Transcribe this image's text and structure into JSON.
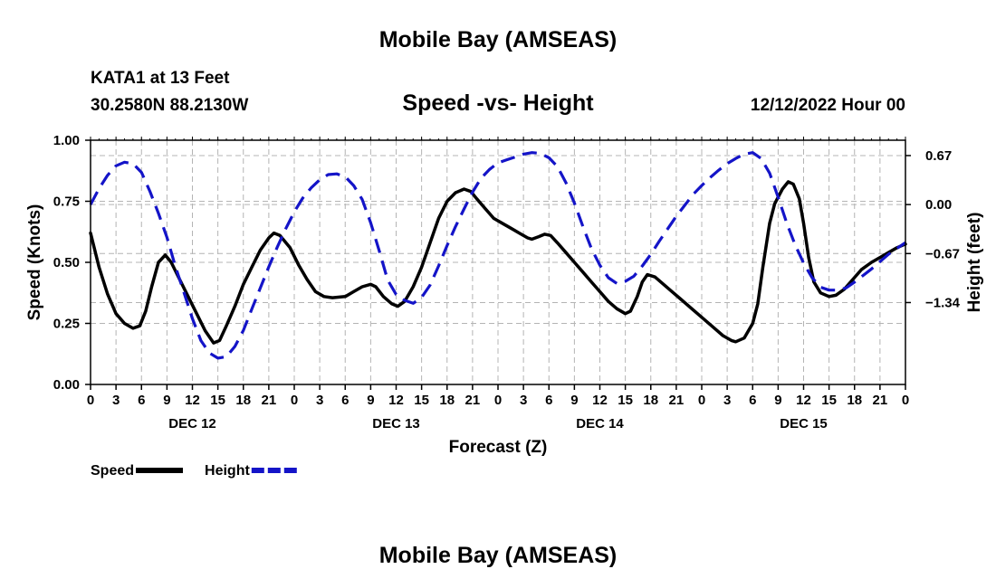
{
  "header": {
    "title": "Mobile Bay (AMSEAS)",
    "station": "KATA1 at 13 Feet",
    "coords": "30.2580N  88.2130W",
    "subtitle": "Speed -vs- Height",
    "datetime": "12/12/2022 Hour 00"
  },
  "footer": {
    "title": "Mobile Bay (AMSEAS)"
  },
  "chart_data": {
    "type": "line",
    "xlabel": "Forecast (Z)",
    "ylabel_left": "Speed (Knots)",
    "ylabel_right": "Height (feet)",
    "x_range_hours": [
      0,
      96
    ],
    "x_tick_step_hours": 3,
    "x_tick_labels": [
      "0",
      "3",
      "6",
      "9",
      "12",
      "15",
      "18",
      "21",
      "0",
      "3",
      "6",
      "9",
      "12",
      "15",
      "18",
      "21",
      "0",
      "3",
      "6",
      "9",
      "12",
      "15",
      "18",
      "21",
      "0",
      "3",
      "6",
      "9",
      "12",
      "15",
      "18",
      "21",
      "0"
    ],
    "day_labels": [
      {
        "hour": 12,
        "label": "DEC 12"
      },
      {
        "hour": 36,
        "label": "DEC 13"
      },
      {
        "hour": 60,
        "label": "DEC 14"
      },
      {
        "hour": 84,
        "label": "DEC 15"
      }
    ],
    "ylim_left": [
      0,
      1
    ],
    "y_ticks_left": [
      "0.00",
      "0.25",
      "0.50",
      "0.75",
      "1.00"
    ],
    "y_ticks_left_values": [
      0,
      0.25,
      0.5,
      0.75,
      1.0
    ],
    "ylim_right": [
      -2.46,
      0.88
    ],
    "y_ticks_right": [
      "0.67",
      "0.00",
      "−0.67",
      "−1.34"
    ],
    "y_ticks_right_values": [
      0.67,
      0.0,
      -0.67,
      -1.34
    ],
    "grid": true,
    "legend": "bottom-left",
    "series": [
      {
        "name": "Speed",
        "color": "#000000",
        "dash": "solid",
        "axis": "left",
        "points": [
          [
            0,
            0.62
          ],
          [
            1,
            0.48
          ],
          [
            2,
            0.37
          ],
          [
            3,
            0.29
          ],
          [
            4,
            0.25
          ],
          [
            5,
            0.23
          ],
          [
            5.8,
            0.24
          ],
          [
            6.5,
            0.3
          ],
          [
            7.2,
            0.4
          ],
          [
            8,
            0.5
          ],
          [
            8.8,
            0.53
          ],
          [
            9.5,
            0.5
          ],
          [
            10.5,
            0.43
          ],
          [
            11.5,
            0.36
          ],
          [
            12.5,
            0.29
          ],
          [
            13.5,
            0.22
          ],
          [
            14.5,
            0.17
          ],
          [
            15.2,
            0.18
          ],
          [
            16,
            0.24
          ],
          [
            17,
            0.32
          ],
          [
            18,
            0.41
          ],
          [
            19,
            0.48
          ],
          [
            20,
            0.55
          ],
          [
            21,
            0.6
          ],
          [
            21.6,
            0.62
          ],
          [
            22.3,
            0.61
          ],
          [
            23.5,
            0.56
          ],
          [
            24.5,
            0.49
          ],
          [
            25.5,
            0.43
          ],
          [
            26.5,
            0.38
          ],
          [
            27.5,
            0.36
          ],
          [
            28.5,
            0.355
          ],
          [
            30,
            0.36
          ],
          [
            31,
            0.38
          ],
          [
            32,
            0.4
          ],
          [
            33,
            0.41
          ],
          [
            33.6,
            0.4
          ],
          [
            34.5,
            0.36
          ],
          [
            35.5,
            0.33
          ],
          [
            36.2,
            0.32
          ],
          [
            37,
            0.34
          ],
          [
            38,
            0.4
          ],
          [
            39,
            0.48
          ],
          [
            40,
            0.58
          ],
          [
            41,
            0.68
          ],
          [
            42,
            0.75
          ],
          [
            43,
            0.785
          ],
          [
            44,
            0.8
          ],
          [
            44.8,
            0.79
          ],
          [
            45.5,
            0.76
          ],
          [
            46.5,
            0.72
          ],
          [
            47.5,
            0.68
          ],
          [
            48.5,
            0.66
          ],
          [
            49.5,
            0.64
          ],
          [
            50.5,
            0.62
          ],
          [
            51.5,
            0.6
          ],
          [
            52,
            0.595
          ],
          [
            52.8,
            0.605
          ],
          [
            53.5,
            0.615
          ],
          [
            54.2,
            0.61
          ],
          [
            55,
            0.58
          ],
          [
            56,
            0.54
          ],
          [
            57,
            0.5
          ],
          [
            58,
            0.46
          ],
          [
            59,
            0.42
          ],
          [
            60,
            0.38
          ],
          [
            61,
            0.34
          ],
          [
            62,
            0.31
          ],
          [
            63,
            0.29
          ],
          [
            63.6,
            0.3
          ],
          [
            64.4,
            0.36
          ],
          [
            65,
            0.42
          ],
          [
            65.6,
            0.45
          ],
          [
            66.5,
            0.44
          ],
          [
            67.5,
            0.41
          ],
          [
            68.5,
            0.38
          ],
          [
            69.5,
            0.35
          ],
          [
            70.5,
            0.32
          ],
          [
            71.5,
            0.29
          ],
          [
            72.5,
            0.26
          ],
          [
            73.5,
            0.23
          ],
          [
            74.5,
            0.2
          ],
          [
            75.5,
            0.18
          ],
          [
            76,
            0.175
          ],
          [
            77,
            0.19
          ],
          [
            78,
            0.25
          ],
          [
            78.6,
            0.33
          ],
          [
            79.2,
            0.48
          ],
          [
            80,
            0.66
          ],
          [
            80.6,
            0.74
          ],
          [
            81.5,
            0.8
          ],
          [
            82.2,
            0.83
          ],
          [
            82.8,
            0.82
          ],
          [
            83.5,
            0.76
          ],
          [
            84,
            0.66
          ],
          [
            84.6,
            0.52
          ],
          [
            85.2,
            0.42
          ],
          [
            86,
            0.375
          ],
          [
            87,
            0.36
          ],
          [
            87.8,
            0.365
          ],
          [
            88.8,
            0.39
          ],
          [
            89.8,
            0.43
          ],
          [
            90.8,
            0.47
          ],
          [
            92,
            0.5
          ],
          [
            93,
            0.52
          ],
          [
            94,
            0.54
          ],
          [
            95,
            0.56
          ],
          [
            96,
            0.575
          ]
        ]
      },
      {
        "name": "Height",
        "color": "#1414c8",
        "dash": "dashed",
        "axis": "right",
        "points": [
          [
            0,
            0.0
          ],
          [
            1,
            0.22
          ],
          [
            2,
            0.4
          ],
          [
            3,
            0.53
          ],
          [
            4,
            0.58
          ],
          [
            5,
            0.56
          ],
          [
            6,
            0.44
          ],
          [
            7,
            0.18
          ],
          [
            8,
            -0.12
          ],
          [
            9,
            -0.45
          ],
          [
            10,
            -0.85
          ],
          [
            11,
            -1.2
          ],
          [
            12,
            -1.56
          ],
          [
            13,
            -1.86
          ],
          [
            14,
            -2.03
          ],
          [
            15,
            -2.1
          ],
          [
            16,
            -2.08
          ],
          [
            17,
            -1.94
          ],
          [
            18,
            -1.72
          ],
          [
            19,
            -1.43
          ],
          [
            20,
            -1.14
          ],
          [
            21,
            -0.85
          ],
          [
            22,
            -0.58
          ],
          [
            23,
            -0.33
          ],
          [
            24,
            -0.1
          ],
          [
            25,
            0.09
          ],
          [
            26,
            0.23
          ],
          [
            27,
            0.34
          ],
          [
            28,
            0.41
          ],
          [
            29,
            0.42
          ],
          [
            30,
            0.38
          ],
          [
            31,
            0.26
          ],
          [
            32,
            0.07
          ],
          [
            33,
            -0.25
          ],
          [
            34,
            -0.63
          ],
          [
            35,
            -1.03
          ],
          [
            36,
            -1.23
          ],
          [
            37,
            -1.31
          ],
          [
            38,
            -1.35
          ],
          [
            39,
            -1.27
          ],
          [
            40,
            -1.1
          ],
          [
            41,
            -0.84
          ],
          [
            42,
            -0.56
          ],
          [
            43,
            -0.3
          ],
          [
            44,
            -0.06
          ],
          [
            45,
            0.17
          ],
          [
            46,
            0.36
          ],
          [
            47,
            0.48
          ],
          [
            48,
            0.57
          ],
          [
            49,
            0.61
          ],
          [
            50,
            0.65
          ],
          [
            51,
            0.69
          ],
          [
            52,
            0.71
          ],
          [
            53,
            0.7
          ],
          [
            54,
            0.64
          ],
          [
            55,
            0.52
          ],
          [
            56,
            0.3
          ],
          [
            57,
            0.02
          ],
          [
            58,
            -0.3
          ],
          [
            59,
            -0.6
          ],
          [
            60,
            -0.83
          ],
          [
            61,
            -1.0
          ],
          [
            62,
            -1.08
          ],
          [
            63,
            -1.05
          ],
          [
            64,
            -0.98
          ],
          [
            65,
            -0.84
          ],
          [
            66,
            -0.68
          ],
          [
            67,
            -0.5
          ],
          [
            68,
            -0.33
          ],
          [
            69,
            -0.16
          ],
          [
            70,
            -0.01
          ],
          [
            71,
            0.14
          ],
          [
            72,
            0.26
          ],
          [
            73,
            0.37
          ],
          [
            74,
            0.47
          ],
          [
            75,
            0.56
          ],
          [
            76,
            0.63
          ],
          [
            77,
            0.69
          ],
          [
            78,
            0.71
          ],
          [
            79,
            0.63
          ],
          [
            80,
            0.43
          ],
          [
            81,
            0.1
          ],
          [
            82,
            -0.25
          ],
          [
            83,
            -0.55
          ],
          [
            84,
            -0.8
          ],
          [
            85,
            -1.0
          ],
          [
            86,
            -1.13
          ],
          [
            87,
            -1.17
          ],
          [
            88,
            -1.17
          ],
          [
            89,
            -1.14
          ],
          [
            90,
            -1.06
          ],
          [
            91,
            -0.97
          ],
          [
            92,
            -0.88
          ],
          [
            93,
            -0.78
          ],
          [
            94,
            -0.68
          ],
          [
            95,
            -0.6
          ],
          [
            96,
            -0.52
          ]
        ]
      }
    ]
  }
}
